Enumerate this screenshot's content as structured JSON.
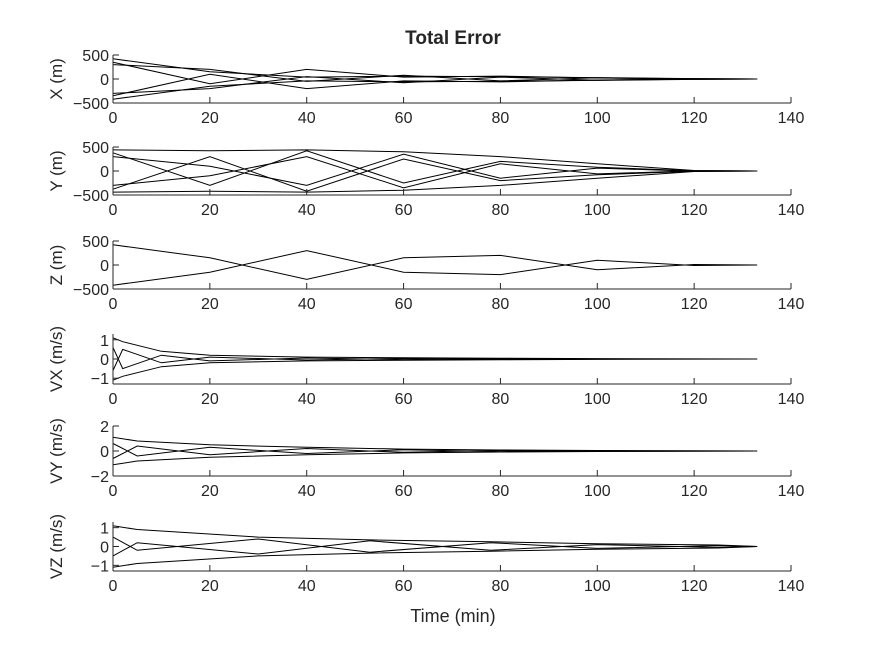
{
  "figure": {
    "title": "Total Error",
    "xlabel": "Time (min)"
  },
  "chart_data": [
    {
      "type": "line",
      "ylabel": "X (m)",
      "xlim": [
        0,
        140
      ],
      "ylim": [
        -500,
        500
      ],
      "xticks": [
        0,
        20,
        40,
        60,
        80,
        100,
        120,
        140
      ],
      "yticks": [
        -500,
        0,
        500
      ],
      "series": [
        {
          "x": [
            0,
            20,
            40,
            60,
            80,
            100,
            120,
            133
          ],
          "y": [
            420,
            150,
            40,
            60,
            45,
            30,
            8,
            0
          ]
        },
        {
          "x": [
            0,
            20,
            40,
            60,
            80,
            100,
            120,
            133
          ],
          "y": [
            -420,
            -150,
            -40,
            -60,
            -45,
            -30,
            -8,
            0
          ]
        },
        {
          "x": [
            0,
            20,
            40,
            60,
            80,
            100,
            120,
            133
          ],
          "y": [
            350,
            -100,
            200,
            40,
            60,
            20,
            5,
            0
          ]
        },
        {
          "x": [
            0,
            20,
            40,
            60,
            80,
            100,
            120,
            133
          ],
          "y": [
            -350,
            100,
            -200,
            -40,
            -60,
            -20,
            -5,
            0
          ]
        },
        {
          "x": [
            0,
            20,
            40,
            60,
            80,
            100,
            120,
            133
          ],
          "y": [
            300,
            200,
            -50,
            80,
            -40,
            25,
            -5,
            0
          ]
        },
        {
          "x": [
            0,
            20,
            40,
            60,
            80,
            100,
            120,
            133
          ],
          "y": [
            -300,
            -200,
            50,
            -80,
            40,
            -25,
            5,
            0
          ]
        }
      ]
    },
    {
      "type": "line",
      "ylabel": "Y (m)",
      "xlim": [
        0,
        140
      ],
      "ylim": [
        -500,
        500
      ],
      "xticks": [
        0,
        20,
        40,
        60,
        80,
        100,
        120,
        140
      ],
      "yticks": [
        -500,
        0,
        500
      ],
      "series": [
        {
          "x": [
            0,
            20,
            40,
            60,
            80,
            100,
            120,
            133
          ],
          "y": [
            440,
            420,
            440,
            400,
            300,
            150,
            10,
            0
          ]
        },
        {
          "x": [
            0,
            20,
            40,
            60,
            80,
            100,
            120,
            133
          ],
          "y": [
            -440,
            -420,
            -440,
            -400,
            -300,
            -150,
            -10,
            0
          ]
        },
        {
          "x": [
            0,
            20,
            40,
            60,
            80,
            100,
            120,
            133
          ],
          "y": [
            380,
            -300,
            420,
            -250,
            200,
            80,
            5,
            0
          ]
        },
        {
          "x": [
            0,
            20,
            40,
            60,
            80,
            100,
            120,
            133
          ],
          "y": [
            -380,
            300,
            -420,
            250,
            -200,
            -80,
            -5,
            0
          ]
        },
        {
          "x": [
            0,
            20,
            40,
            60,
            80,
            100,
            120,
            133
          ],
          "y": [
            300,
            100,
            -300,
            350,
            -150,
            60,
            -5,
            0
          ]
        },
        {
          "x": [
            0,
            20,
            40,
            60,
            80,
            100,
            120,
            133
          ],
          "y": [
            -300,
            -100,
            300,
            -350,
            150,
            -60,
            5,
            0
          ]
        }
      ]
    },
    {
      "type": "line",
      "ylabel": "Z (m)",
      "xlim": [
        0,
        140
      ],
      "ylim": [
        -500,
        500
      ],
      "xticks": [
        0,
        20,
        40,
        60,
        80,
        100,
        120,
        140
      ],
      "yticks": [
        -500,
        0,
        500
      ],
      "series": [
        {
          "x": [
            0,
            20,
            40,
            60,
            80,
            100,
            120,
            133
          ],
          "y": [
            420,
            150,
            -300,
            150,
            200,
            -100,
            10,
            0
          ]
        },
        {
          "x": [
            0,
            20,
            40,
            60,
            80,
            100,
            120,
            133
          ],
          "y": [
            -420,
            -150,
            300,
            -150,
            -200,
            100,
            -10,
            0
          ]
        }
      ]
    },
    {
      "type": "line",
      "ylabel": "VX (m/s)",
      "xlim": [
        0,
        140
      ],
      "ylim": [
        -1.3,
        1.3
      ],
      "xticks": [
        0,
        20,
        40,
        60,
        80,
        100,
        120,
        140
      ],
      "yticks": [
        -1,
        0,
        1
      ],
      "series": [
        {
          "x": [
            0,
            2,
            10,
            20,
            40,
            60,
            80,
            100,
            133
          ],
          "y": [
            1.1,
            0.9,
            0.4,
            0.2,
            0.1,
            0.06,
            0.04,
            0.02,
            0
          ]
        },
        {
          "x": [
            0,
            2,
            10,
            20,
            40,
            60,
            80,
            100,
            133
          ],
          "y": [
            -1.1,
            -0.9,
            -0.4,
            -0.2,
            -0.1,
            -0.06,
            -0.04,
            -0.02,
            0
          ]
        },
        {
          "x": [
            0,
            2,
            10,
            20,
            40,
            60,
            80,
            100,
            133
          ],
          "y": [
            0.6,
            -0.5,
            0.2,
            -0.1,
            0.05,
            -0.03,
            0.02,
            0,
            0
          ]
        },
        {
          "x": [
            0,
            2,
            10,
            20,
            40,
            60,
            80,
            100,
            133
          ],
          "y": [
            -0.6,
            0.5,
            -0.2,
            0.1,
            -0.05,
            0.03,
            -0.02,
            0,
            0
          ]
        }
      ]
    },
    {
      "type": "line",
      "ylabel": "VY (m/s)",
      "xlim": [
        0,
        140
      ],
      "ylim": [
        -2,
        2
      ],
      "xticks": [
        0,
        20,
        40,
        60,
        80,
        100,
        120,
        140
      ],
      "yticks": [
        -2,
        0,
        2
      ],
      "series": [
        {
          "x": [
            0,
            5,
            20,
            40,
            60,
            80,
            100,
            133
          ],
          "y": [
            1.1,
            0.8,
            0.5,
            0.3,
            0.15,
            0.08,
            0.04,
            0
          ]
        },
        {
          "x": [
            0,
            5,
            20,
            40,
            60,
            80,
            100,
            133
          ],
          "y": [
            -1.1,
            -0.8,
            -0.5,
            -0.3,
            -0.15,
            -0.08,
            -0.04,
            0
          ]
        },
        {
          "x": [
            0,
            5,
            20,
            40,
            60,
            80,
            100,
            133
          ],
          "y": [
            0.6,
            -0.4,
            0.3,
            -0.2,
            0.1,
            -0.05,
            0.02,
            0
          ]
        },
        {
          "x": [
            0,
            5,
            20,
            40,
            60,
            80,
            100,
            133
          ],
          "y": [
            -0.6,
            0.4,
            -0.3,
            0.2,
            -0.1,
            0.05,
            -0.02,
            0
          ]
        }
      ]
    },
    {
      "type": "line",
      "ylabel": "VZ (m/s)",
      "xlim": [
        0,
        140
      ],
      "ylim": [
        -1.3,
        1.3
      ],
      "xticks": [
        0,
        20,
        40,
        60,
        80,
        100,
        120,
        140
      ],
      "yticks": [
        -1,
        0,
        1
      ],
      "series": [
        {
          "x": [
            0,
            5,
            30,
            53,
            78,
            100,
            125,
            133
          ],
          "y": [
            1.1,
            0.9,
            0.5,
            0.35,
            0.25,
            0.15,
            0.08,
            0
          ]
        },
        {
          "x": [
            0,
            5,
            30,
            53,
            78,
            100,
            125,
            133
          ],
          "y": [
            -1.1,
            -0.9,
            -0.5,
            -0.35,
            -0.25,
            -0.15,
            -0.08,
            0
          ]
        },
        {
          "x": [
            0,
            5,
            30,
            53,
            78,
            100,
            125,
            133
          ],
          "y": [
            0.5,
            -0.2,
            0.4,
            -0.3,
            0.2,
            -0.1,
            0.05,
            0
          ]
        },
        {
          "x": [
            0,
            5,
            30,
            53,
            78,
            100,
            125,
            133
          ],
          "y": [
            -0.5,
            0.2,
            -0.4,
            0.3,
            -0.2,
            0.1,
            -0.05,
            0
          ]
        }
      ]
    }
  ]
}
